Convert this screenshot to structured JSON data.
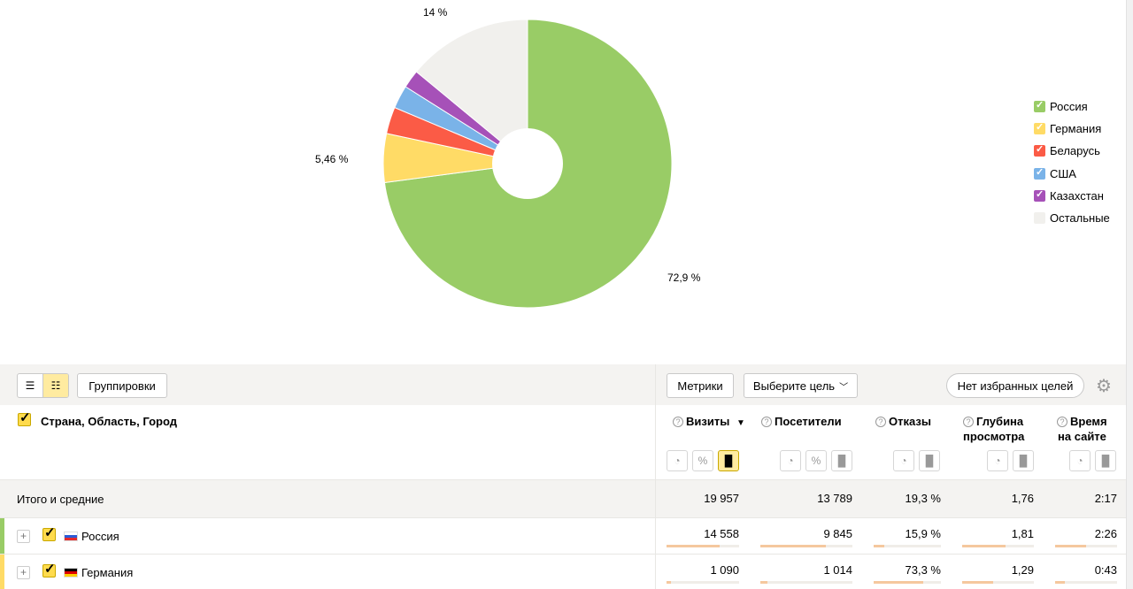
{
  "chart_data": {
    "type": "pie",
    "donut": true,
    "slices": [
      {
        "name": "Россия",
        "value": 72.9,
        "color": "#99cc66"
      },
      {
        "name": "Германия",
        "value": 5.46,
        "color": "#ffdb66"
      },
      {
        "name": "Беларусь",
        "value": 3.0,
        "color": "#fb5b46"
      },
      {
        "name": "США",
        "value": 2.6,
        "color": "#7ab3e8"
      },
      {
        "name": "Казахстан",
        "value": 2.04,
        "color": "#a651b8"
      },
      {
        "name": "Остальные",
        "value": 14.0,
        "color": "#f1f0ed"
      }
    ],
    "data_labels": [
      "72,9 %",
      "5,46 %",
      "14 %"
    ],
    "legend_position": "right"
  },
  "legend": [
    {
      "label": "Россия",
      "color": "#99cc66",
      "checked": true
    },
    {
      "label": "Германия",
      "color": "#ffdb66",
      "checked": true
    },
    {
      "label": "Беларусь",
      "color": "#fb5b46",
      "checked": true
    },
    {
      "label": "США",
      "color": "#7ab3e8",
      "checked": true
    },
    {
      "label": "Казахстан",
      "color": "#a651b8",
      "checked": true
    },
    {
      "label": "Остальные",
      "color": "#f1f0ed",
      "checked": false
    }
  ],
  "toolbar": {
    "list_icon": "list-icon",
    "tree_icon": "tree-icon",
    "groupings_label": "Группировки",
    "metrics_label": "Метрики",
    "goal_select_label": "Выберите цель",
    "favorites_label": "Нет избранных целей",
    "settings_icon": "gear-icon"
  },
  "table": {
    "dimension_header": "Страна, Область, Город",
    "columns": [
      {
        "label": "Визиты",
        "sort": "▼"
      },
      {
        "label": "Посетители"
      },
      {
        "label": "Отказы"
      },
      {
        "label": "Глубина",
        "label2": "просмотра"
      },
      {
        "label": "Время",
        "label2": "на сайте"
      }
    ],
    "total": {
      "label": "Итого и средние",
      "values": [
        "19 957",
        "13 789",
        "19,3 %",
        "1,76",
        "2:17"
      ]
    },
    "rows": [
      {
        "label": "Россия",
        "color": "#99cc66",
        "values": [
          "14 558",
          "9 845",
          "15,9 %",
          "1,81",
          "2:26"
        ],
        "fractions": [
          0.73,
          0.714,
          0.159,
          0.603,
          0.5
        ]
      },
      {
        "label": "Германия",
        "color": "#ffdb66",
        "values": [
          "1 090",
          "1 014",
          "73,3 %",
          "1,29",
          "0:43"
        ],
        "fractions": [
          0.055,
          0.074,
          0.733,
          0.43,
          0.15
        ]
      }
    ]
  }
}
